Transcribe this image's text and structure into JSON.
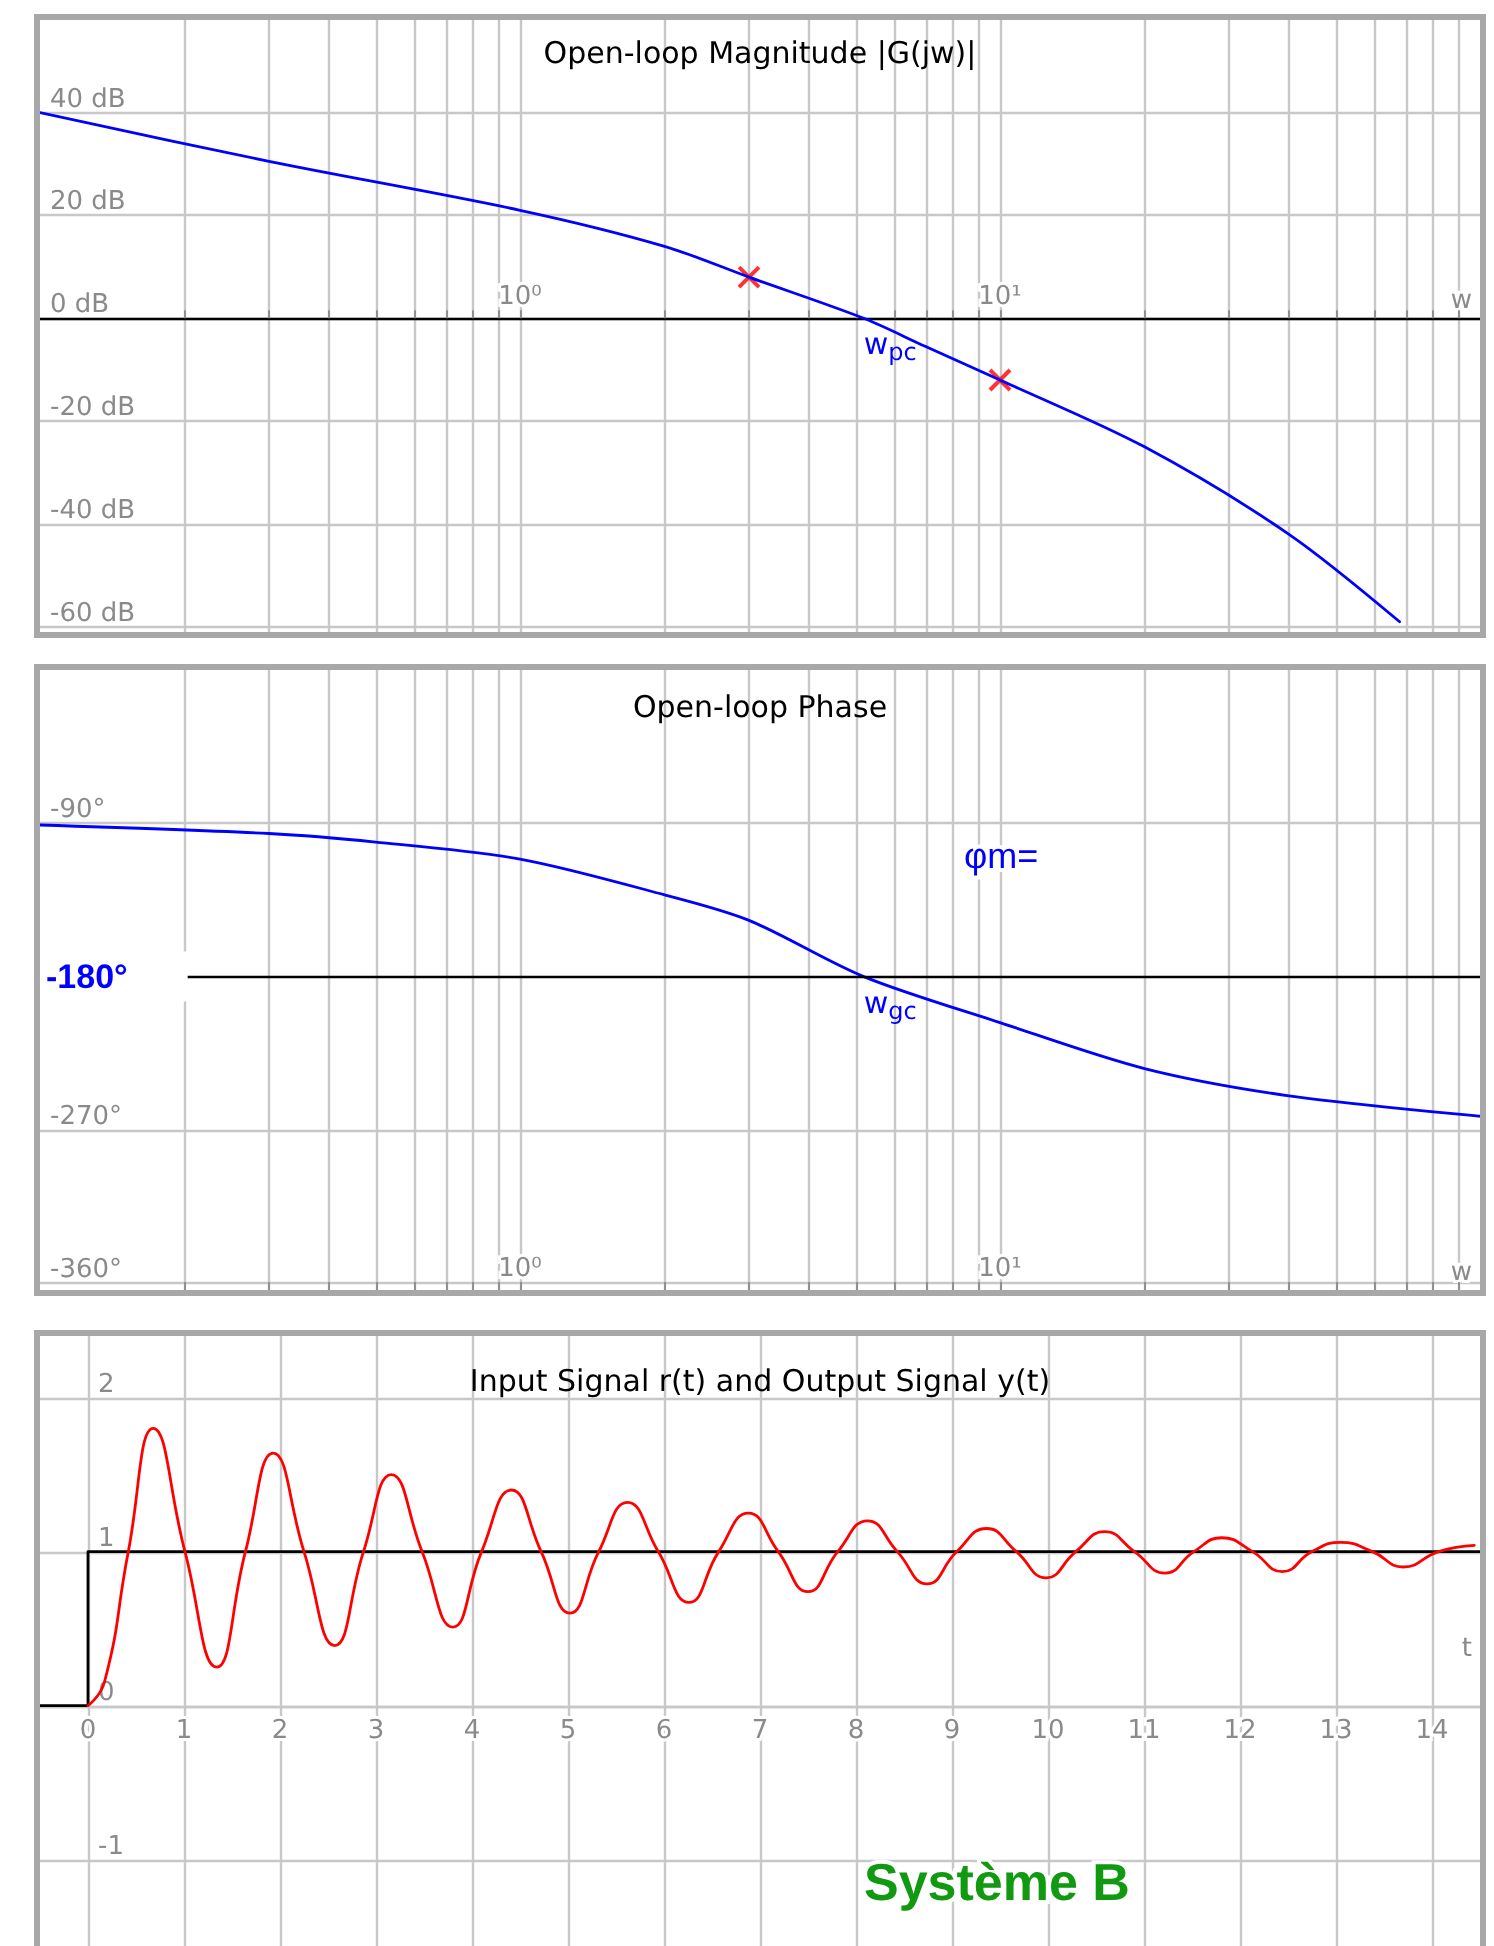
{
  "chart_data": [
    {
      "type": "line",
      "title": "Open-loop Magnitude |G(jw)|",
      "xlabel": "w",
      "log": "x",
      "grid": true,
      "xlim": [
        0.1,
        100
      ],
      "xticks": [
        {
          "value": 0.2,
          "label": null
        },
        {
          "value": 0.3,
          "label": null
        },
        {
          "value": 0.4,
          "label": null
        },
        {
          "value": 0.5,
          "label": null
        },
        {
          "value": 0.6,
          "label": null
        },
        {
          "value": 0.7,
          "label": null
        },
        {
          "value": 0.8,
          "label": null
        },
        {
          "value": 0.9,
          "label": null
        },
        {
          "value": 1,
          "label": "10⁰"
        },
        {
          "value": 2,
          "label": null
        },
        {
          "value": 3,
          "label": null
        },
        {
          "value": 4,
          "label": null
        },
        {
          "value": 5,
          "label": null
        },
        {
          "value": 6,
          "label": null
        },
        {
          "value": 7,
          "label": null
        },
        {
          "value": 8,
          "label": null
        },
        {
          "value": 9,
          "label": null
        },
        {
          "value": 10,
          "label": "10¹"
        },
        {
          "value": 20,
          "label": null
        },
        {
          "value": 30,
          "label": null
        },
        {
          "value": 40,
          "label": null
        },
        {
          "value": 50,
          "label": null
        },
        {
          "value": 60,
          "label": null
        },
        {
          "value": 70,
          "label": null
        },
        {
          "value": 80,
          "label": null
        },
        {
          "value": 90,
          "label": null
        }
      ],
      "ylim": [
        -61,
        58
      ],
      "yticks": [
        {
          "value": 40,
          "label": "40 dB"
        },
        {
          "value": 20,
          "label": "20 dB"
        },
        {
          "value": 0,
          "label": "0 dB"
        },
        {
          "value": -20,
          "label": "-20 dB"
        },
        {
          "value": -40,
          "label": "-40 dB"
        },
        {
          "value": -60,
          "label": "-60 dB"
        }
      ],
      "series": [
        {
          "color": "#0000ff",
          "marker": "none",
          "x": [
            0.1,
            0.3,
            1,
            2,
            3,
            5.2,
            7,
            10,
            20,
            40,
            68
          ],
          "values": [
            40,
            30.5,
            21,
            14,
            8,
            0,
            -5.5,
            -12,
            -25,
            -42,
            -59
          ]
        },
        {
          "type": "scatter",
          "color": "#ff0000",
          "marker": "cross",
          "x": [
            3,
            10
          ],
          "values": [
            8,
            -12
          ]
        }
      ],
      "annotations": [
        {
          "text": "w$_{pc}$",
          "x": 5.2,
          "y": 0
        }
      ]
    },
    {
      "type": "line",
      "title": "Open-loop Phase",
      "xlabel": "w",
      "log": "x",
      "grid": true,
      "xlim": [
        0.1,
        100
      ],
      "xticks": [
        {
          "value": 0.2,
          "label": null
        },
        {
          "value": 0.3,
          "label": null
        },
        {
          "value": 0.4,
          "label": null
        },
        {
          "value": 0.5,
          "label": null
        },
        {
          "value": 0.6,
          "label": null
        },
        {
          "value": 0.7,
          "label": null
        },
        {
          "value": 0.8,
          "label": null
        },
        {
          "value": 0.9,
          "label": null
        },
        {
          "value": 1,
          "label": "10⁰"
        },
        {
          "value": 2,
          "label": null
        },
        {
          "value": 3,
          "label": null
        },
        {
          "value": 4,
          "label": null
        },
        {
          "value": 5,
          "label": null
        },
        {
          "value": 6,
          "label": null
        },
        {
          "value": 7,
          "label": null
        },
        {
          "value": 8,
          "label": null
        },
        {
          "value": 9,
          "label": null
        },
        {
          "value": 10,
          "label": "10¹"
        },
        {
          "value": 20,
          "label": null
        },
        {
          "value": 30,
          "label": null
        },
        {
          "value": 40,
          "label": null
        },
        {
          "value": 50,
          "label": null
        },
        {
          "value": 60,
          "label": null
        },
        {
          "value": 70,
          "label": null
        },
        {
          "value": 80,
          "label": null
        },
        {
          "value": 90,
          "label": null
        }
      ],
      "ylim": [
        -364,
        0
      ],
      "yticks": [
        {
          "value": -90,
          "label": "-90°"
        },
        {
          "value": -270,
          "label": "-270°"
        },
        {
          "value": -360,
          "label": "-360°"
        }
      ],
      "ref_lines": [
        {
          "axis": "y",
          "value": -180,
          "label": "-180°",
          "color": "#000000"
        }
      ],
      "series": [
        {
          "color": "#0000ff",
          "marker": "none",
          "x": [
            0.1,
            0.3,
            0.5,
            1,
            2,
            3,
            5.2,
            10,
            20,
            40,
            100
          ],
          "values": [
            -91,
            -96,
            -101,
            -111,
            -132,
            -147,
            -180,
            -207,
            -234,
            -250,
            -262
          ]
        }
      ],
      "annotations": [
        {
          "text": "w$_{gc}$",
          "x": 5.2,
          "y": -180
        },
        "φm="
      ]
    },
    {
      "type": "line",
      "title": "Input Signal r(t) and Output Signal y(t)",
      "xlabel": "t",
      "grid": true,
      "xlim": [
        -0.5,
        14.5
      ],
      "xticks": [
        0,
        1,
        2,
        3,
        4,
        5,
        6,
        7,
        8,
        9,
        10,
        11,
        12,
        13,
        14
      ],
      "ylim": [
        -1.6,
        2.4
      ],
      "yticks": [
        -1,
        0,
        1,
        2
      ],
      "series": [
        {
          "color": "#000000",
          "marker": "none",
          "x": [
            -0.5,
            0,
            0,
            14.5
          ],
          "values": [
            0,
            0,
            1,
            1
          ]
        },
        {
          "color": "#ff0000",
          "marker": "none",
          "x": [
            0,
            0.17,
            0.42,
            0.68,
            1.01,
            1.34,
            1.64,
            1.93,
            2.25,
            2.57,
            2.87,
            3.16,
            3.48,
            3.8,
            4.1,
            4.41,
            4.72,
            5.02,
            5.32,
            5.62,
            5.94,
            6.26,
            6.57,
            6.88,
            7.19,
            7.5,
            7.81,
            8.12,
            8.43,
            8.74,
            9.05,
            9.36,
            9.67,
            9.98,
            10.29,
            10.59,
            10.9,
            11.22,
            11.52,
            11.81,
            12.13,
            12.44,
            12.75,
            13.05,
            13.38,
            13.7,
            14.07,
            14.44
          ],
          "values": [
            0,
            0.15,
            1.0,
            1.8,
            1.0,
            0.25,
            1.0,
            1.64,
            1.0,
            0.39,
            1.0,
            1.5,
            1.0,
            0.51,
            1.0,
            1.4,
            1.0,
            0.6,
            1.0,
            1.32,
            1.0,
            0.67,
            1.0,
            1.25,
            1.0,
            0.74,
            1.0,
            1.2,
            1.0,
            0.79,
            1.0,
            1.15,
            1.0,
            0.83,
            1.0,
            1.13,
            1.0,
            0.86,
            1.0,
            1.09,
            1.0,
            0.87,
            1.0,
            1.06,
            1.0,
            0.9,
            1.0,
            1.04
          ]
        }
      ],
      "annotations": [
        "Système B"
      ]
    }
  ]
}
